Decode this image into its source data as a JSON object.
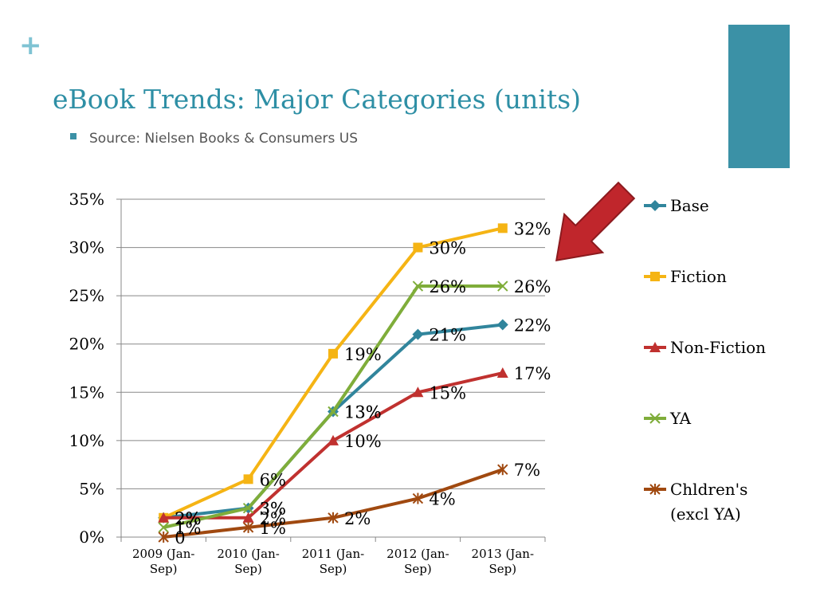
{
  "slide": {
    "plus_glyph": "+",
    "title": "eBook Trends: Major Categories (units)",
    "bullet": "Source: Nielsen Books & Consumers US",
    "colors": {
      "title": "#2e8fa5",
      "plus": "#7fc3d3",
      "accent_block": "#3b91a6",
      "bullet": "#3b91a6",
      "arrow_fill": "#c0262c",
      "arrow_stroke": "#8c1a1e"
    },
    "icons": {
      "plus": "plus-icon",
      "arrow": "red-arrow-icon",
      "bullet": "square-bullet-icon"
    }
  },
  "chart_data": {
    "type": "line",
    "categories": [
      "2009 (Jan-Sep)",
      "2010 (Jan-Sep)",
      "2011 (Jan-Sep)",
      "2012 (Jan-Sep)",
      "2013 (Jan-Sep)"
    ],
    "category_lines": [
      [
        "2009 (Jan-",
        "Sep)"
      ],
      [
        "2010 (Jan-",
        "Sep)"
      ],
      [
        "2011 (Jan-",
        "Sep)"
      ],
      [
        "2012 (Jan-",
        "Sep)"
      ],
      [
        "2013 (Jan-",
        "Sep)"
      ]
    ],
    "ylim": [
      0,
      35
    ],
    "yticks": [
      0,
      5,
      10,
      15,
      20,
      25,
      30,
      35
    ],
    "ytick_labels": [
      "0%",
      "5%",
      "10%",
      "15%",
      "20%",
      "25%",
      "30%",
      "35%"
    ],
    "grid": "horizontal",
    "legend_position": "right",
    "series": [
      {
        "name": "Base",
        "color": "#31859c",
        "marker": "diamond",
        "values": [
          2,
          3,
          13,
          21,
          22
        ],
        "labels": [
          "2%",
          "3%",
          "13%",
          "21%",
          "22%"
        ]
      },
      {
        "name": "Fiction",
        "color": "#f5b414",
        "marker": "square",
        "values": [
          2,
          6,
          19,
          30,
          32
        ],
        "labels": [
          "2%",
          "6%",
          "19%",
          "30%",
          "32%"
        ]
      },
      {
        "name": "Non-Fiction",
        "color": "#c0312f",
        "marker": "triangle",
        "values": [
          2,
          2,
          10,
          15,
          17
        ],
        "labels": [
          "2%",
          "2%",
          "10%",
          "15%",
          "17%"
        ]
      },
      {
        "name": "YA",
        "color": "#7fad3a",
        "marker": "x",
        "values": [
          1,
          3,
          13,
          26,
          26
        ],
        "labels": [
          "1%",
          "3%",
          "13%",
          "26%",
          "26%"
        ]
      },
      {
        "name": "Chldren's (excl YA)",
        "legend_lines": [
          "Chldren's",
          "(excl YA)"
        ],
        "color": "#a04910",
        "marker": "star",
        "values": [
          0,
          1,
          2,
          4,
          7
        ],
        "labels": [
          "0",
          "1%",
          "2%",
          "4%",
          "7%"
        ]
      }
    ]
  }
}
